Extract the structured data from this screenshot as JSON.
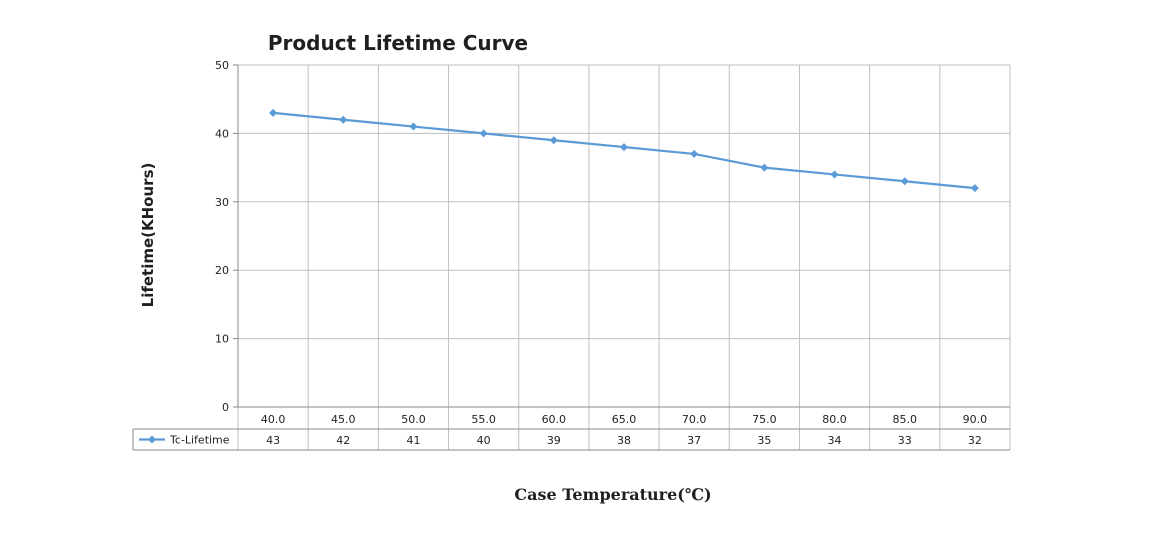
{
  "chart_data": {
    "type": "line",
    "title": "Product Lifetime Curve",
    "xlabel": "Case Temperature(℃)",
    "ylabel": "Lifetime(KHours)",
    "categories": [
      "40.0",
      "45.0",
      "50.0",
      "55.0",
      "60.0",
      "65.0",
      "70.0",
      "75.0",
      "80.0",
      "85.0",
      "90.0"
    ],
    "series": [
      {
        "name": "Tc-Lifetime",
        "values": [
          43,
          42,
          41,
          40,
          39,
          38,
          37,
          35,
          34,
          33,
          32
        ],
        "color": "#5b9bd5"
      }
    ],
    "ylim": [
      0,
      50
    ],
    "yticks": [
      0,
      10,
      20,
      30,
      40,
      50
    ],
    "grid": true,
    "legend": "data-table-left",
    "data_table": true
  }
}
